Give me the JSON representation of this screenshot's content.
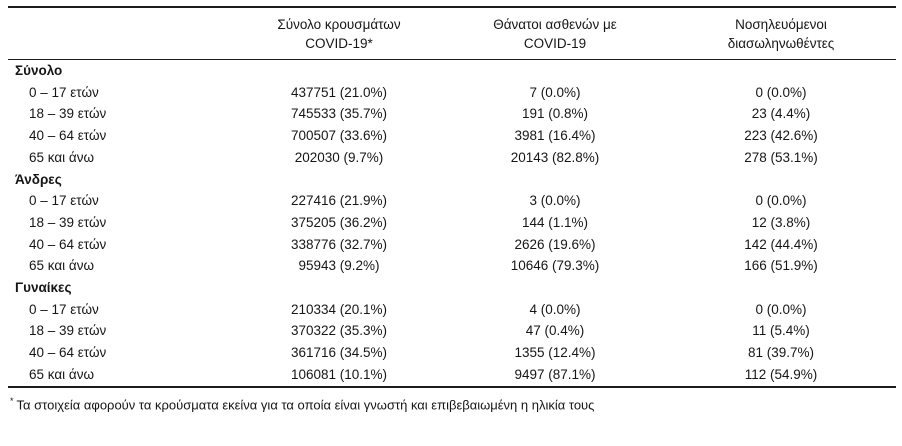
{
  "header": {
    "col_label": "",
    "col_cases": "Σύνολο κρουσμάτων COVID-19*",
    "col_deaths": "Θάνατοι ασθενών με COVID-19",
    "col_intubated": "Νοσηλευόμενοι διασωληνωθέντες"
  },
  "groups": [
    {
      "label": "Σύνολο",
      "rows": [
        {
          "label": "0 – 17 ετών",
          "cases": "437751 (21.0%)",
          "deaths": "7 (0.0%)",
          "intubated": "0 (0.0%)"
        },
        {
          "label": "18 – 39 ετών",
          "cases": "745533 (35.7%)",
          "deaths": "191 (0.8%)",
          "intubated": "23 (4.4%)"
        },
        {
          "label": "40 – 64 ετών",
          "cases": "700507 (33.6%)",
          "deaths": "3981 (16.4%)",
          "intubated": "223 (42.6%)"
        },
        {
          "label": "65 και άνω",
          "cases": "202030 (9.7%)",
          "deaths": "20143 (82.8%)",
          "intubated": "278 (53.1%)"
        }
      ]
    },
    {
      "label": "Άνδρες",
      "rows": [
        {
          "label": "0 – 17 ετών",
          "cases": "227416 (21.9%)",
          "deaths": "3 (0.0%)",
          "intubated": "0 (0.0%)"
        },
        {
          "label": "18 – 39 ετών",
          "cases": "375205 (36.2%)",
          "deaths": "144 (1.1%)",
          "intubated": "12 (3.8%)"
        },
        {
          "label": "40 – 64 ετών",
          "cases": "338776 (32.7%)",
          "deaths": "2626 (19.6%)",
          "intubated": "142 (44.4%)"
        },
        {
          "label": "65 και άνω",
          "cases": "95943 (9.2%)",
          "deaths": "10646 (79.3%)",
          "intubated": "166 (51.9%)"
        }
      ]
    },
    {
      "label": "Γυναίκες",
      "rows": [
        {
          "label": "0 – 17 ετών",
          "cases": "210334 (20.1%)",
          "deaths": "4 (0.0%)",
          "intubated": "0 (0.0%)"
        },
        {
          "label": "18 – 39 ετών",
          "cases": "370322 (35.3%)",
          "deaths": "47 (0.4%)",
          "intubated": "11 (5.4%)"
        },
        {
          "label": "40 – 64 ετών",
          "cases": "361716 (34.5%)",
          "deaths": "1355 (12.4%)",
          "intubated": "81 (39.7%)"
        },
        {
          "label": "65 και άνω",
          "cases": "106081 (10.1%)",
          "deaths": "9497 (87.1%)",
          "intubated": "112 (54.9%)"
        }
      ]
    }
  ],
  "footnote": {
    "marker": "*",
    "text": "Τα στοιχεία αφορούν τα κρούσματα εκείνα για τα οποία είναι γνωστή και επιβεβαιωμένη η ηλικία τους"
  }
}
